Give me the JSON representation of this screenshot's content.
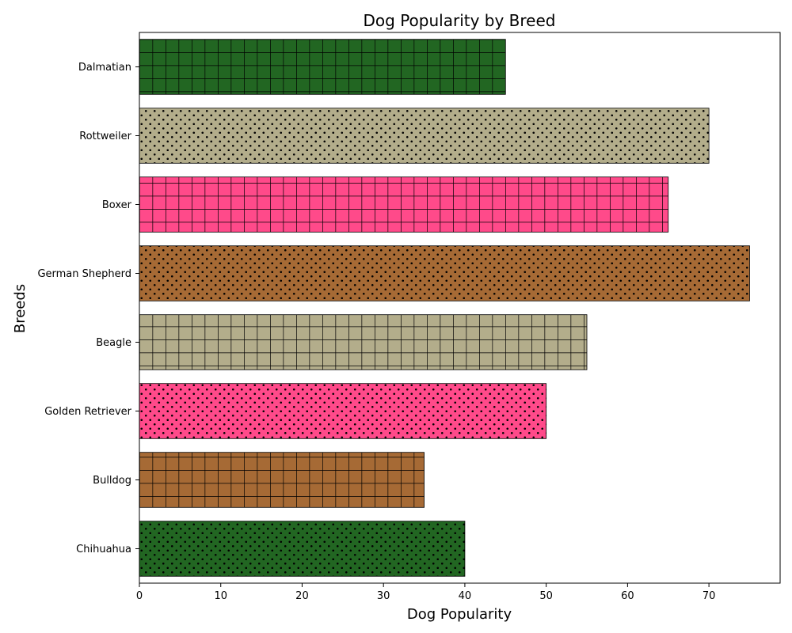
{
  "chart_data": {
    "type": "bar",
    "orientation": "horizontal",
    "title": "Dog Popularity by Breed",
    "xlabel": "Dog Popularity",
    "ylabel": "Breeds",
    "xlim": [
      0,
      78.75
    ],
    "xticks": [
      0,
      10,
      20,
      30,
      40,
      50,
      60,
      70
    ],
    "grid": false,
    "categories": [
      "Chihuahua",
      "Bulldog",
      "Golden Retriever",
      "Beagle",
      "German Shepherd",
      "Boxer",
      "Rottweiler",
      "Dalmatian"
    ],
    "values": [
      40,
      35,
      50,
      55,
      75,
      65,
      70,
      45
    ],
    "bar_colors": [
      "#226622",
      "#a66a35",
      "#ff4a8a",
      "#b3ad8b",
      "#a66a35",
      "#ff4a8a",
      "#b3ad8b",
      "#226622"
    ],
    "bar_patterns": [
      "dots",
      "grid",
      "dots",
      "grid",
      "dots",
      "grid",
      "dots",
      "grid"
    ]
  }
}
